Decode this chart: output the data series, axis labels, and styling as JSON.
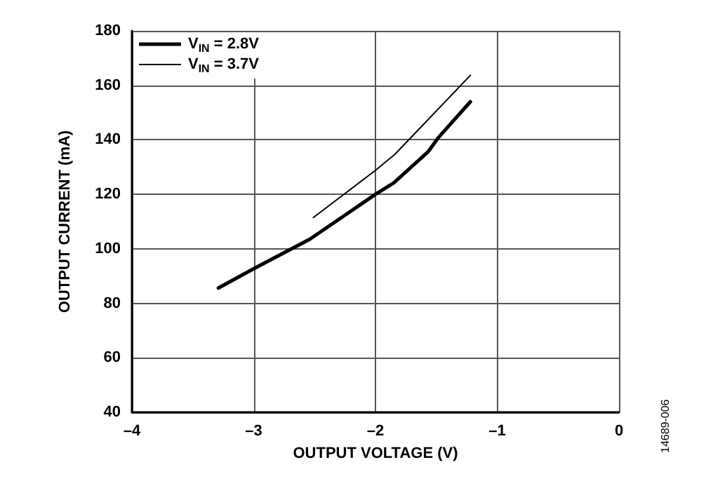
{
  "chart_data": {
    "type": "line",
    "xlabel": "OUTPUT VOLTAGE (V)",
    "ylabel": "OUTPUT CURRENT (mA)",
    "xlim": [
      -4,
      0
    ],
    "xticks": [
      {
        "value": -4,
        "label": "–4"
      },
      {
        "value": -3,
        "label": "–3"
      },
      {
        "value": -2,
        "label": "–2"
      },
      {
        "value": -1,
        "label": "–1"
      },
      0
    ],
    "ylim": [
      40,
      180
    ],
    "yticks": [
      40,
      60,
      80,
      100,
      120,
      140,
      160,
      180
    ],
    "grid": true,
    "legend": "top left",
    "marker": "none",
    "line_style": "solid",
    "series": [
      {
        "name": "V$_{IN}$ = 2.8V",
        "color": "#000000",
        "x": [
          -3.29,
          -3.0,
          -2.54,
          -2.0,
          -1.85,
          -1.57,
          -1.48,
          -1.22
        ],
        "values": [
          85.6,
          92.7,
          103.5,
          120,
          124.2,
          135.5,
          141,
          154
        ]
      },
      {
        "name": "V$_{IN}$ = 3.7V",
        "color": "#000000",
        "x": [
          -2.51,
          -2.0,
          -1.84,
          -1.72,
          -1.22
        ],
        "values": [
          111.5,
          128.8,
          134.7,
          140.3,
          163.7
        ]
      }
    ],
    "annotations": [
      "14689-006"
    ]
  }
}
